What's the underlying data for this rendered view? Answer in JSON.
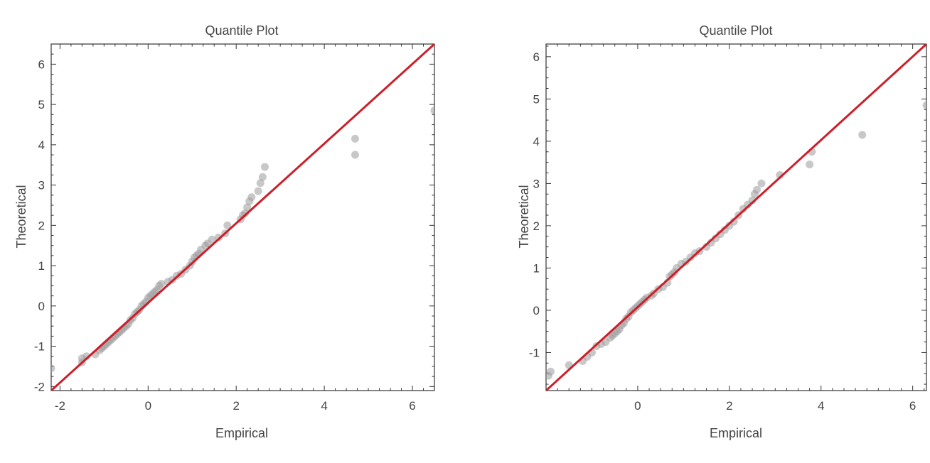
{
  "colors": {
    "reference_line": "#cc1f2a",
    "points": "#9a9a9a",
    "axis": "#333333",
    "text": "#444444"
  },
  "chart_data": [
    {
      "type": "scatter",
      "title": "Quantile Plot",
      "xlabel": "Empirical",
      "ylabel": "Theoretical",
      "xlim": [
        -2.2,
        6.5
      ],
      "ylim": [
        -2.1,
        6.5
      ],
      "xticks": [
        "-2",
        "0",
        "2",
        "4",
        "6"
      ],
      "yticks": [
        "-2",
        "-1",
        "0",
        "1",
        "2",
        "3",
        "4",
        "5",
        "6"
      ],
      "reference_line": {
        "x": [
          -2.2,
          6.5
        ],
        "y": [
          -2.1,
          6.5
        ]
      },
      "series": [
        {
          "name": "quantiles",
          "x": [
            -2.2,
            -1.5,
            -1.5,
            -1.4,
            -1.2,
            -1.1,
            -1.05,
            -1.0,
            -0.95,
            -0.9,
            -0.85,
            -0.8,
            -0.75,
            -0.7,
            -0.65,
            -0.6,
            -0.55,
            -0.5,
            -0.45,
            -0.4,
            -0.35,
            -0.3,
            -0.25,
            -0.2,
            -0.15,
            -0.1,
            -0.05,
            0.0,
            0.05,
            0.1,
            0.15,
            0.2,
            0.25,
            0.3,
            0.45,
            0.55,
            0.65,
            0.75,
            0.85,
            0.95,
            1.0,
            1.05,
            1.1,
            1.15,
            1.2,
            1.3,
            1.35,
            1.45,
            1.6,
            1.75,
            1.8,
            2.1,
            2.15,
            2.2,
            2.25,
            2.3,
            2.35,
            2.5,
            2.55,
            2.6,
            2.65,
            4.7,
            4.7,
            6.5
          ],
          "y": [
            -1.55,
            -1.4,
            -1.3,
            -1.25,
            -1.2,
            -1.1,
            -1.05,
            -1.0,
            -0.95,
            -0.9,
            -0.85,
            -0.8,
            -0.75,
            -0.7,
            -0.65,
            -0.6,
            -0.55,
            -0.5,
            -0.45,
            -0.35,
            -0.3,
            -0.2,
            -0.15,
            -0.1,
            0.0,
            0.05,
            0.1,
            0.2,
            0.25,
            0.3,
            0.35,
            0.4,
            0.5,
            0.55,
            0.6,
            0.65,
            0.75,
            0.8,
            0.9,
            1.0,
            1.1,
            1.2,
            1.25,
            1.3,
            1.4,
            1.5,
            1.55,
            1.65,
            1.7,
            1.8,
            2.0,
            2.15,
            2.25,
            2.3,
            2.45,
            2.6,
            2.7,
            2.85,
            3.05,
            3.2,
            3.45,
            3.75,
            4.15,
            4.85
          ]
        }
      ]
    },
    {
      "type": "scatter",
      "title": "Quantile Plot",
      "xlabel": "Empirical",
      "ylabel": "Theoretical",
      "xlim": [
        -2.0,
        6.3
      ],
      "ylim": [
        -1.9,
        6.3
      ],
      "xticks": [
        "0",
        "2",
        "4",
        "6"
      ],
      "yticks": [
        "-1",
        "0",
        "1",
        "2",
        "3",
        "4",
        "5",
        "6"
      ],
      "reference_line": {
        "x": [
          -2.0,
          6.3
        ],
        "y": [
          -1.9,
          6.3
        ]
      },
      "series": [
        {
          "name": "quantiles",
          "x": [
            -1.95,
            -1.9,
            -1.5,
            -1.2,
            -1.1,
            -1.0,
            -0.9,
            -0.8,
            -0.7,
            -0.6,
            -0.55,
            -0.5,
            -0.45,
            -0.4,
            -0.35,
            -0.3,
            -0.25,
            -0.2,
            -0.15,
            -0.1,
            -0.05,
            0.0,
            0.05,
            0.1,
            0.15,
            0.2,
            0.3,
            0.35,
            0.45,
            0.55,
            0.65,
            0.7,
            0.75,
            0.8,
            0.85,
            0.95,
            1.05,
            1.15,
            1.25,
            1.35,
            1.5,
            1.6,
            1.7,
            1.8,
            1.9,
            2.0,
            2.1,
            2.2,
            2.3,
            2.4,
            2.5,
            2.55,
            2.6,
            2.7,
            3.1,
            3.75,
            3.8,
            4.9,
            6.3
          ],
          "y": [
            -1.55,
            -1.45,
            -1.3,
            -1.2,
            -1.1,
            -1.0,
            -0.85,
            -0.8,
            -0.75,
            -0.65,
            -0.6,
            -0.55,
            -0.5,
            -0.45,
            -0.35,
            -0.3,
            -0.2,
            -0.15,
            -0.05,
            0.0,
            0.05,
            0.1,
            0.15,
            0.2,
            0.25,
            0.3,
            0.35,
            0.4,
            0.5,
            0.55,
            0.65,
            0.8,
            0.85,
            0.9,
            1.0,
            1.1,
            1.15,
            1.25,
            1.35,
            1.4,
            1.5,
            1.6,
            1.7,
            1.8,
            1.9,
            2.0,
            2.1,
            2.25,
            2.4,
            2.5,
            2.6,
            2.75,
            2.85,
            3.0,
            3.2,
            3.45,
            3.75,
            4.15,
            4.85
          ]
        }
      ]
    }
  ]
}
